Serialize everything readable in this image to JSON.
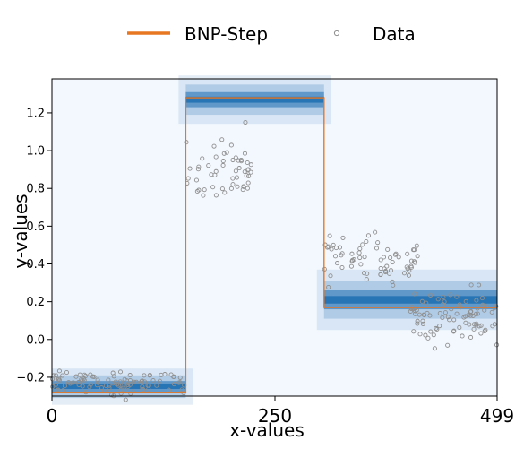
{
  "chart_data": {
    "type": "scatter",
    "xlabel": "x-values",
    "ylabel": "y-values",
    "xlim": [
      0,
      499
    ],
    "ylim": [
      -0.3,
      1.38
    ],
    "x_ticks": [
      0,
      250,
      499
    ],
    "y_ticks": [
      -0.2,
      0.0,
      0.2,
      0.4,
      0.6,
      0.8,
      1.0,
      1.2
    ],
    "legend": {
      "placement": "top-center",
      "entries": [
        "BNP-Step",
        "Data"
      ]
    },
    "colors": {
      "step": "#e87722",
      "data": "#8f8f8f",
      "posterior": "#1f6fb2",
      "background": "#f3f8fe"
    },
    "step_fit": {
      "name": "BNP-Step",
      "x": [
        0,
        150,
        150,
        305,
        305,
        499
      ],
      "y": [
        -0.28,
        -0.28,
        1.28,
        1.28,
        0.17,
        0.17
      ]
    },
    "posterior_bands": [
      {
        "x0": 0,
        "x1": 150,
        "y": -0.25,
        "spread": 0.03
      },
      {
        "x0": 150,
        "x1": 305,
        "y": 1.27,
        "spread": 0.04
      },
      {
        "x0": 305,
        "x1": 499,
        "y": 0.21,
        "spread": 0.05
      }
    ],
    "data_series": {
      "name": "Data",
      "segments": [
        {
          "x0": 0,
          "x1": 150,
          "center": -0.23,
          "noise": 0.045,
          "n": 100
        },
        {
          "x0": 150,
          "x1": 224,
          "center": 0.9,
          "noise": 0.12,
          "n": 55
        },
        {
          "x0": 305,
          "x1": 415,
          "center": 0.42,
          "noise": 0.09,
          "n": 70
        },
        {
          "x0": 398,
          "x1": 499,
          "center": 0.12,
          "noise": 0.1,
          "n": 90
        }
      ]
    }
  }
}
